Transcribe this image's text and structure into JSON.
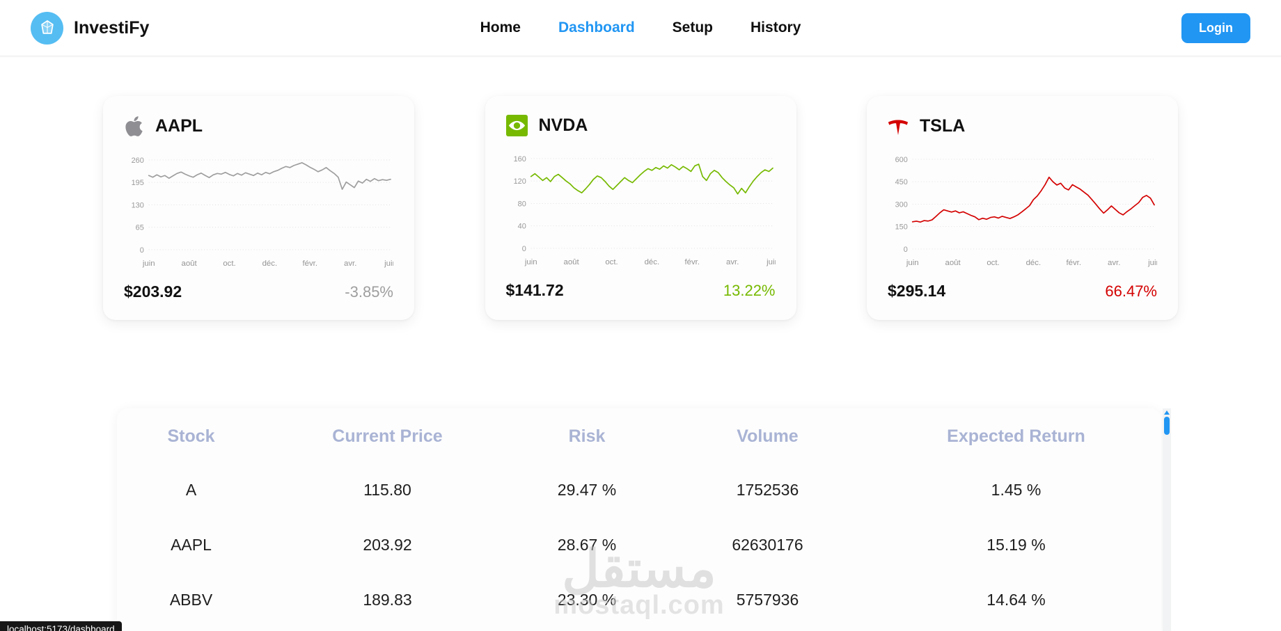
{
  "colors": {
    "accent_blue": "#2196f3",
    "logo_blue": "#55bdf2",
    "aapl_gray": "#9e9e9e",
    "nvda_green": "#76b900",
    "tsla_red": "#d40000",
    "table_header_text": "#a9b3d4"
  },
  "header": {
    "brand": "InvestiFy",
    "nav": [
      {
        "label": "Home",
        "active": false
      },
      {
        "label": "Dashboard",
        "active": true
      },
      {
        "label": "Setup",
        "active": false
      },
      {
        "label": "History",
        "active": false
      }
    ],
    "login_label": "Login"
  },
  "cards": [
    {
      "ticker": "AAPL",
      "icon": "apple-logo-icon",
      "price": "$203.92",
      "change": "-3.85%",
      "change_color": "#9e9e9e",
      "line_color": "#9e9e9e",
      "chart": {
        "type": "line",
        "ymax": 260,
        "y_ticks": [
          260,
          195,
          130,
          65,
          0
        ],
        "x_labels": [
          "juin",
          "août",
          "oct.",
          "déc.",
          "févr.",
          "avr.",
          "juin"
        ],
        "values": [
          215,
          210,
          217,
          211,
          215,
          207,
          214,
          221,
          225,
          219,
          214,
          210,
          217,
          222,
          215,
          209,
          217,
          221,
          219,
          224,
          218,
          214,
          221,
          216,
          223,
          219,
          215,
          222,
          217,
          224,
          220,
          226,
          230,
          236,
          241,
          238,
          244,
          248,
          252,
          246,
          239,
          233,
          226,
          231,
          238,
          229,
          221,
          210,
          175,
          196,
          188,
          180,
          199,
          193,
          204,
          198,
          206,
          200,
          203,
          201,
          204
        ]
      }
    },
    {
      "ticker": "NVDA",
      "icon": "nvidia-logo-icon",
      "price": "$141.72",
      "change": "13.22%",
      "change_color": "#76b900",
      "line_color": "#76b900",
      "chart": {
        "type": "line",
        "ymax": 160,
        "y_ticks": [
          160,
          120,
          80,
          40,
          0
        ],
        "x_labels": [
          "juin",
          "août",
          "oct.",
          "déc.",
          "févr.",
          "avr.",
          "juin"
        ],
        "values": [
          128,
          133,
          127,
          121,
          126,
          119,
          128,
          132,
          126,
          120,
          115,
          108,
          103,
          99,
          106,
          114,
          123,
          129,
          126,
          119,
          111,
          105,
          112,
          119,
          126,
          121,
          117,
          124,
          131,
          137,
          142,
          139,
          144,
          141,
          147,
          143,
          149,
          145,
          140,
          146,
          142,
          137,
          147,
          150,
          128,
          121,
          133,
          139,
          135,
          126,
          119,
          113,
          108,
          97,
          107,
          99,
          110,
          120,
          128,
          135,
          140,
          137,
          143
        ]
      }
    },
    {
      "ticker": "TSLA",
      "icon": "tesla-logo-icon",
      "price": "$295.14",
      "change": "66.47%",
      "change_color": "#d40000",
      "line_color": "#d40000",
      "chart": {
        "type": "line",
        "ymax": 600,
        "y_ticks": [
          600,
          450,
          300,
          150,
          0
        ],
        "x_labels": [
          "juin",
          "août",
          "oct.",
          "déc.",
          "févr.",
          "avr.",
          "juin"
        ],
        "values": [
          182,
          186,
          180,
          190,
          187,
          195,
          218,
          242,
          262,
          255,
          247,
          255,
          242,
          249,
          237,
          225,
          215,
          196,
          206,
          199,
          211,
          215,
          207,
          219,
          211,
          204,
          215,
          228,
          248,
          268,
          290,
          330,
          355,
          390,
          430,
          480,
          450,
          428,
          440,
          408,
          395,
          430,
          415,
          400,
          380,
          360,
          330,
          300,
          268,
          240,
          262,
          288,
          265,
          242,
          228,
          250,
          268,
          290,
          310,
          345,
          358,
          340,
          295
        ]
      }
    }
  ],
  "table": {
    "headers": [
      "Stock",
      "Current Price",
      "Risk",
      "Volume",
      "Expected Return"
    ],
    "rows": [
      [
        "A",
        "115.80",
        "29.47 %",
        "1752536",
        "1.45 %"
      ],
      [
        "AAPL",
        "203.92",
        "28.67 %",
        "62630176",
        "15.19 %"
      ],
      [
        "ABBV",
        "189.83",
        "23.30 %",
        "5757936",
        "14.64 %"
      ]
    ]
  },
  "watermark": {
    "arabic": "مستقل",
    "latin": "mostaql.com"
  },
  "status_tooltip": "localhost:5173/dashboard"
}
